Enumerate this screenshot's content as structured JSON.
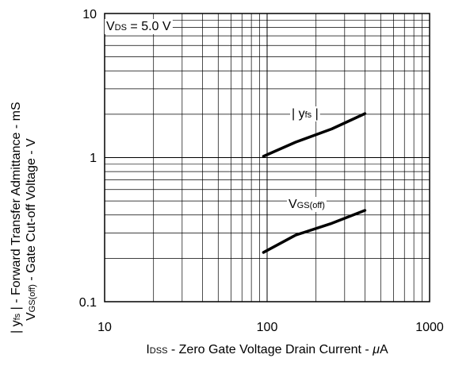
{
  "chart_data": {
    "type": "line",
    "xscale": "log",
    "yscale": "log",
    "xlim": [
      10,
      1000
    ],
    "ylim": [
      0.1,
      10
    ],
    "grid": true,
    "x_ticks": [
      "10",
      "100",
      "1000"
    ],
    "y_ticks": [
      "10",
      "1",
      "0.1"
    ],
    "condition": {
      "pre": "V",
      "sub": "DS",
      "post": " = 5.0 V"
    },
    "ylabel_line1": {
      "pre": "| y",
      "sub": "fs",
      "post": " | - Forward Transfer Admittance - mS"
    },
    "ylabel_line2": {
      "pre": "V",
      "sub": "GS(off)",
      "post": " - Gate Cut-off Voltage - V"
    },
    "xlabel": {
      "pre": "I",
      "sub": "DSS",
      "post": " - Zero Gate Voltage Drain Current - ",
      "unit_mu": "μ",
      "unit": "A"
    },
    "series": [
      {
        "label": {
          "pre": "| y",
          "sub": "fs",
          "post": " |"
        },
        "x": [
          95,
          150,
          250,
          400
        ],
        "y": [
          1.02,
          1.28,
          1.58,
          2.02
        ]
      },
      {
        "label": {
          "pre": "V",
          "sub": "GS(off)",
          "post": ""
        },
        "x": [
          95,
          150,
          250,
          400
        ],
        "y": [
          0.22,
          0.29,
          0.35,
          0.43
        ]
      }
    ]
  }
}
